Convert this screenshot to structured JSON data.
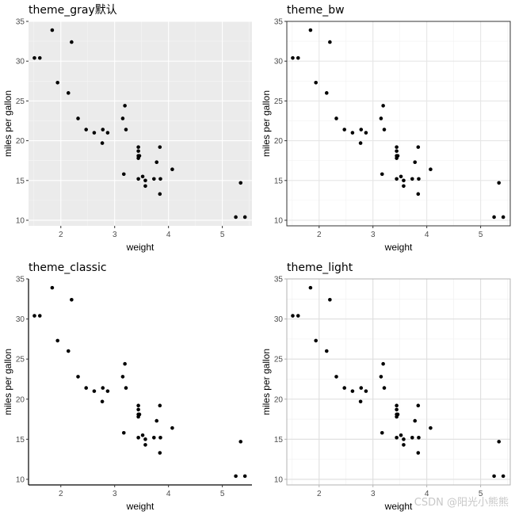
{
  "figure": {
    "watermark": "CSDN @阳光小熊熊"
  },
  "chart_data": [
    {
      "type": "scatter",
      "theme": "gray",
      "title": "theme_gray默认",
      "xlabel": "weight",
      "ylabel": "miles per gallon",
      "xlim": [
        1.4,
        5.55
      ],
      "ylim": [
        9.3,
        35
      ],
      "xticks": [
        2,
        3,
        4,
        5
      ],
      "yticks": [
        10,
        15,
        20,
        25,
        30,
        35
      ],
      "grid": true,
      "panel_border": false,
      "axis_lines": false,
      "points": [
        [
          1.51,
          30.4
        ],
        [
          1.61,
          30.4
        ],
        [
          1.84,
          33.9
        ],
        [
          1.94,
          27.3
        ],
        [
          2.14,
          26.0
        ],
        [
          2.2,
          32.4
        ],
        [
          2.32,
          22.8
        ],
        [
          2.47,
          21.4
        ],
        [
          2.62,
          21.0
        ],
        [
          2.77,
          19.7
        ],
        [
          2.78,
          21.4
        ],
        [
          2.87,
          21.0
        ],
        [
          3.15,
          22.8
        ],
        [
          3.17,
          15.8
        ],
        [
          3.19,
          24.4
        ],
        [
          3.21,
          21.4
        ],
        [
          3.44,
          18.7
        ],
        [
          3.44,
          19.2
        ],
        [
          3.44,
          17.8
        ],
        [
          3.44,
          18.1
        ],
        [
          3.46,
          18.1
        ],
        [
          3.44,
          15.2
        ],
        [
          3.52,
          15.5
        ],
        [
          3.57,
          15.0
        ],
        [
          3.57,
          14.3
        ],
        [
          3.73,
          15.2
        ],
        [
          3.78,
          17.3
        ],
        [
          3.84,
          13.3
        ],
        [
          3.84,
          19.2
        ],
        [
          3.85,
          15.2
        ],
        [
          4.07,
          16.4
        ],
        [
          5.25,
          10.4
        ],
        [
          5.34,
          14.7
        ],
        [
          5.42,
          10.4
        ]
      ]
    },
    {
      "type": "scatter",
      "theme": "bw",
      "title": "theme_bw",
      "xlabel": "weight",
      "ylabel": "miles per gallon",
      "xlim": [
        1.4,
        5.55
      ],
      "ylim": [
        9.3,
        35
      ],
      "xticks": [
        2,
        3,
        4,
        5
      ],
      "yticks": [
        10,
        15,
        20,
        25,
        30,
        35
      ],
      "grid": true,
      "panel_border": true,
      "axis_lines": false,
      "points": [
        [
          1.51,
          30.4
        ],
        [
          1.61,
          30.4
        ],
        [
          1.84,
          33.9
        ],
        [
          1.94,
          27.3
        ],
        [
          2.14,
          26.0
        ],
        [
          2.2,
          32.4
        ],
        [
          2.32,
          22.8
        ],
        [
          2.47,
          21.4
        ],
        [
          2.62,
          21.0
        ],
        [
          2.77,
          19.7
        ],
        [
          2.78,
          21.4
        ],
        [
          2.87,
          21.0
        ],
        [
          3.15,
          22.8
        ],
        [
          3.17,
          15.8
        ],
        [
          3.19,
          24.4
        ],
        [
          3.21,
          21.4
        ],
        [
          3.44,
          18.7
        ],
        [
          3.44,
          19.2
        ],
        [
          3.44,
          17.8
        ],
        [
          3.44,
          18.1
        ],
        [
          3.46,
          18.1
        ],
        [
          3.44,
          15.2
        ],
        [
          3.52,
          15.5
        ],
        [
          3.57,
          15.0
        ],
        [
          3.57,
          14.3
        ],
        [
          3.73,
          15.2
        ],
        [
          3.78,
          17.3
        ],
        [
          3.84,
          13.3
        ],
        [
          3.84,
          19.2
        ],
        [
          3.85,
          15.2
        ],
        [
          4.07,
          16.4
        ],
        [
          5.25,
          10.4
        ],
        [
          5.34,
          14.7
        ],
        [
          5.42,
          10.4
        ]
      ]
    },
    {
      "type": "scatter",
      "theme": "classic",
      "title": "theme_classic",
      "xlabel": "weight",
      "ylabel": "miles per gallon",
      "xlim": [
        1.4,
        5.55
      ],
      "ylim": [
        9.3,
        35
      ],
      "xticks": [
        2,
        3,
        4,
        5
      ],
      "yticks": [
        10,
        15,
        20,
        25,
        30,
        35
      ],
      "grid": false,
      "panel_border": false,
      "axis_lines": true,
      "points": [
        [
          1.51,
          30.4
        ],
        [
          1.61,
          30.4
        ],
        [
          1.84,
          33.9
        ],
        [
          1.94,
          27.3
        ],
        [
          2.14,
          26.0
        ],
        [
          2.2,
          32.4
        ],
        [
          2.32,
          22.8
        ],
        [
          2.47,
          21.4
        ],
        [
          2.62,
          21.0
        ],
        [
          2.77,
          19.7
        ],
        [
          2.78,
          21.4
        ],
        [
          2.87,
          21.0
        ],
        [
          3.15,
          22.8
        ],
        [
          3.17,
          15.8
        ],
        [
          3.19,
          24.4
        ],
        [
          3.21,
          21.4
        ],
        [
          3.44,
          18.7
        ],
        [
          3.44,
          19.2
        ],
        [
          3.44,
          17.8
        ],
        [
          3.44,
          18.1
        ],
        [
          3.46,
          18.1
        ],
        [
          3.44,
          15.2
        ],
        [
          3.52,
          15.5
        ],
        [
          3.57,
          15.0
        ],
        [
          3.57,
          14.3
        ],
        [
          3.73,
          15.2
        ],
        [
          3.78,
          17.3
        ],
        [
          3.84,
          13.3
        ],
        [
          3.84,
          19.2
        ],
        [
          3.85,
          15.2
        ],
        [
          4.07,
          16.4
        ],
        [
          5.25,
          10.4
        ],
        [
          5.34,
          14.7
        ],
        [
          5.42,
          10.4
        ]
      ]
    },
    {
      "type": "scatter",
      "theme": "light",
      "title": "theme_light",
      "xlabel": "weight",
      "ylabel": "miles per gallon",
      "xlim": [
        1.4,
        5.55
      ],
      "ylim": [
        9.3,
        35
      ],
      "xticks": [
        2,
        3,
        4,
        5
      ],
      "yticks": [
        10,
        15,
        20,
        25,
        30,
        35
      ],
      "grid": true,
      "panel_border": true,
      "axis_lines": false,
      "points": [
        [
          1.51,
          30.4
        ],
        [
          1.61,
          30.4
        ],
        [
          1.84,
          33.9
        ],
        [
          1.94,
          27.3
        ],
        [
          2.14,
          26.0
        ],
        [
          2.2,
          32.4
        ],
        [
          2.32,
          22.8
        ],
        [
          2.47,
          21.4
        ],
        [
          2.62,
          21.0
        ],
        [
          2.77,
          19.7
        ],
        [
          2.78,
          21.4
        ],
        [
          2.87,
          21.0
        ],
        [
          3.15,
          22.8
        ],
        [
          3.17,
          15.8
        ],
        [
          3.19,
          24.4
        ],
        [
          3.21,
          21.4
        ],
        [
          3.44,
          18.7
        ],
        [
          3.44,
          19.2
        ],
        [
          3.44,
          17.8
        ],
        [
          3.44,
          18.1
        ],
        [
          3.46,
          18.1
        ],
        [
          3.44,
          15.2
        ],
        [
          3.52,
          15.5
        ],
        [
          3.57,
          15.0
        ],
        [
          3.57,
          14.3
        ],
        [
          3.73,
          15.2
        ],
        [
          3.78,
          17.3
        ],
        [
          3.84,
          13.3
        ],
        [
          3.84,
          19.2
        ],
        [
          3.85,
          15.2
        ],
        [
          4.07,
          16.4
        ],
        [
          5.25,
          10.4
        ],
        [
          5.34,
          14.7
        ],
        [
          5.42,
          10.4
        ]
      ]
    }
  ]
}
